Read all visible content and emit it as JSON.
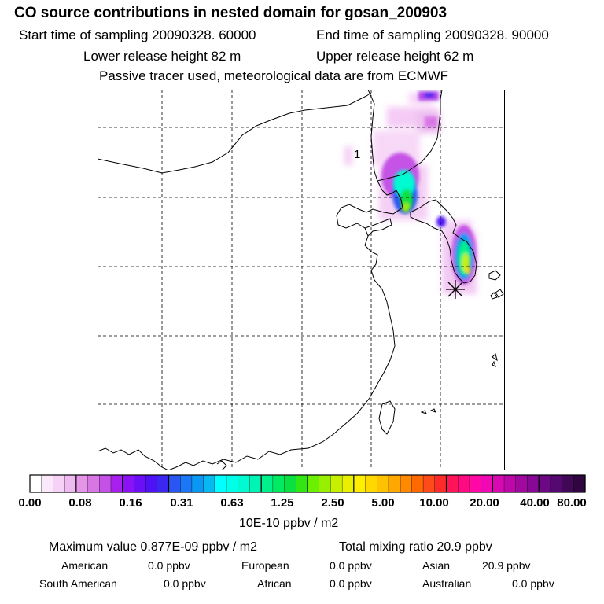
{
  "header": {
    "title": "CO  source contributions in nested domain for gosan_200903",
    "start_time": "Start time of sampling 20090328. 60000",
    "end_time": "End time of sampling 20090328. 90000",
    "lower_release": "Lower release height   82 m",
    "upper_release": "Upper release height   62 m",
    "tracer_info": "Passive tracer used, meteorological data are from ECMWF"
  },
  "map": {
    "label_marker": "1",
    "receptor": "Gosan",
    "colors": {
      "frame": "#000000",
      "coast": "#000000",
      "grid": "#000000"
    }
  },
  "colorbar": {
    "ticks": [
      "0.00",
      "0.08",
      "0.16",
      "0.31",
      "0.63",
      "1.25",
      "2.50",
      "5.00",
      "10.00",
      "20.00",
      "40.00",
      "80.00"
    ],
    "units": "10E-10 ppbv / m2",
    "colors": [
      "#ffffff",
      "#fbe9fb",
      "#f6d3f6",
      "#efbaef",
      "#e596e9",
      "#d877e4",
      "#c552e6",
      "#a820ee",
      "#8a12f4",
      "#6a0ff6",
      "#4f12f4",
      "#3a28f0",
      "#2a56f4",
      "#1a78f6",
      "#0b98f4",
      "#08b8f0",
      "#00ffff",
      "#00ffe8",
      "#00fad2",
      "#00f4b4",
      "#00f08c",
      "#00ea62",
      "#0ae040",
      "#32e614",
      "#6cf000",
      "#96f000",
      "#c6f000",
      "#e8f000",
      "#ffee00",
      "#ffd800",
      "#ffc200",
      "#ffa800",
      "#ff8a00",
      "#ff6a00",
      "#ff4a1a",
      "#ff2a2a",
      "#ff1458",
      "#ff0a82",
      "#ff08a6",
      "#f008b4",
      "#d808b2",
      "#bc08a8",
      "#a0089e",
      "#860894",
      "#6c0884",
      "#540870",
      "#420858",
      "#300640"
    ]
  },
  "stats": {
    "max_value": "Maximum value  0.877E-09 ppbv / m2",
    "total_mixing": "Total mixing ratio       20.9 ppbv",
    "regions": [
      {
        "name": "American",
        "value": "0.0 ppbv"
      },
      {
        "name": "European",
        "value": "0.0 ppbv"
      },
      {
        "name": "Asian",
        "value": "20.9 ppbv"
      },
      {
        "name": "South American",
        "value": "0.0 ppbv"
      },
      {
        "name": "African",
        "value": "0.0 ppbv"
      },
      {
        "name": "Australian",
        "value": "0.0 ppbv"
      }
    ]
  }
}
